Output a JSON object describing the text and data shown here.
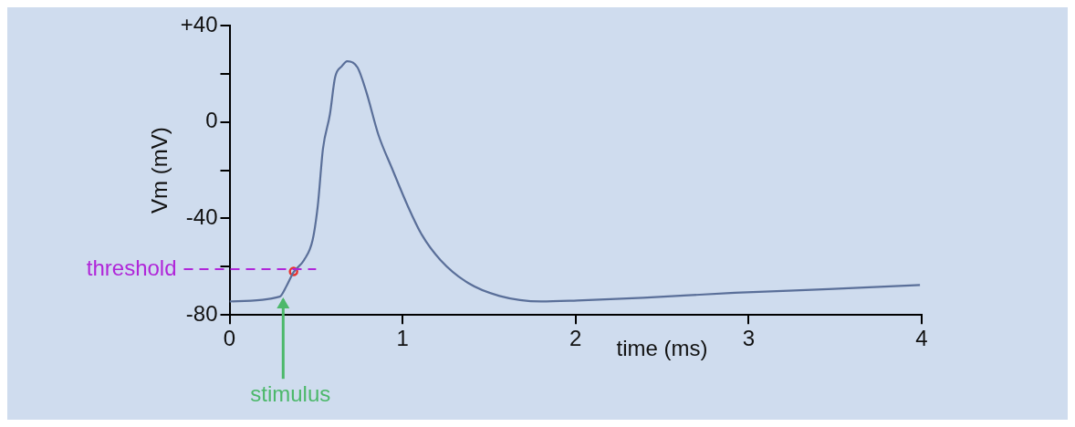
{
  "chart_data": {
    "type": "line",
    "xlabel": "time (ms)",
    "ylabel": "Vm (mV)",
    "x": [
      0,
      0.29,
      0.33,
      0.37,
      0.43,
      0.48,
      0.51,
      0.54,
      0.58,
      0.61,
      0.65,
      0.68,
      0.74,
      0.79,
      0.86,
      0.94,
      1.03,
      1.11,
      1.22,
      1.38,
      1.56,
      1.8,
      2.01,
      2.39,
      2.92,
      3.46,
      3.99
    ],
    "series": [
      {
        "color": "#5a6f99",
        "values": [
          -74.4,
          -72.4,
          -67.9,
          -62.3,
          -57.3,
          -49,
          -34.8,
          -11.1,
          3.1,
          18.5,
          23.2,
          25.2,
          22.6,
          12.6,
          -5.2,
          -19.4,
          -34.8,
          -46.6,
          -57.3,
          -66.8,
          -72.1,
          -74.4,
          -74,
          -72.9,
          -70.8,
          -69.3,
          -67.6
        ]
      },
      {
        "type": "scatter",
        "color": "#e8332f",
        "x": [
          0.37
        ],
        "values": [
          -62
        ],
        "marker": "circle"
      }
    ],
    "xlim": [
      0,
      4
    ],
    "xticks": [
      0,
      1,
      2,
      3,
      4
    ],
    "ylim": [
      -80,
      40
    ],
    "yticks": [
      {
        "value": -80,
        "label": "-80"
      },
      {
        "value": -60,
        "label": null
      },
      {
        "value": -40,
        "label": "-40"
      },
      {
        "value": -20,
        "label": null
      },
      {
        "value": 0,
        "label": "0"
      },
      {
        "value": 20,
        "label": null
      },
      {
        "value": 40,
        "label": "+40"
      }
    ],
    "ref_lines": [
      {
        "axis": "y",
        "value": -61,
        "label": "threshold",
        "color": "#b026d9",
        "line_style": "dashed"
      }
    ],
    "annotations": [
      {
        "text": "stimulus",
        "x": 0.31,
        "y": -72
      }
    ],
    "grid": false,
    "legend": false,
    "marker": "none",
    "line_style": "solid"
  }
}
